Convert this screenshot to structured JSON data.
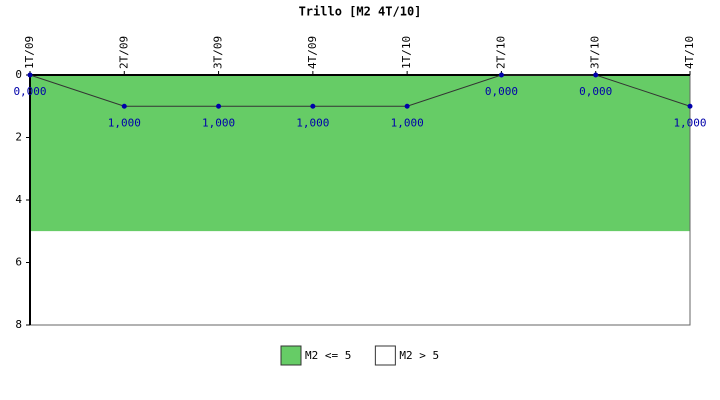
{
  "chart_data": {
    "type": "line",
    "title": "Trillo [M2 4T/10]",
    "categories": [
      "1T/09",
      "2T/09",
      "3T/09",
      "4T/09",
      "1T/10",
      "2T/10",
      "3T/10",
      "4T/10"
    ],
    "series": [
      {
        "color": "#333333",
        "marker_color": "#0000aa",
        "values": [
          0,
          1,
          1,
          1,
          1,
          0,
          0,
          1
        ],
        "value_labels": [
          "0,000",
          "1,000",
          "1,000",
          "1,000",
          "1,000",
          "0,000",
          "0,000",
          "1,000"
        ]
      }
    ],
    "bands": [
      {
        "name": "M2 <= 5",
        "color": "#66cc66",
        "from": 0,
        "to": 5
      },
      {
        "name": "M2 > 5",
        "color": "#ffffff",
        "from": 5,
        "to": 8
      }
    ],
    "ylim": [
      0,
      8
    ],
    "yticks": [
      0,
      2,
      4,
      6,
      8
    ],
    "y_reversed": true,
    "legend": "bottom"
  }
}
